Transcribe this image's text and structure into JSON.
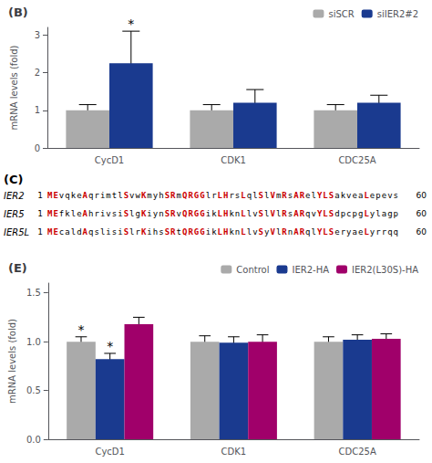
{
  "chart_data": [
    {
      "type": "bar",
      "title": "(B)",
      "categories": [
        "CycD1",
        "CDK1",
        "CDC25A"
      ],
      "series": [
        {
          "name": "siSCR",
          "color": "#aaaaaa",
          "values": [
            1.0,
            1.0,
            1.0
          ],
          "errors": [
            0.15,
            0.15,
            0.15
          ]
        },
        {
          "name": "siIER2#2",
          "color": "#1a3a8f",
          "values": [
            2.25,
            1.2,
            1.2
          ],
          "errors": [
            0.85,
            0.35,
            0.2
          ]
        }
      ],
      "ylabel": "mRNA levels (fold)",
      "ylim": [
        0,
        3.2
      ],
      "yticks": [
        0,
        1,
        2,
        3
      ],
      "legend": "upper right",
      "grid": false,
      "annotations": [
        {
          "text": "*",
          "series": "siIER2#2",
          "category": "CycD1"
        }
      ]
    },
    {
      "type": "text",
      "title": "(C)",
      "annotations": [
        {
          "label": "IER2",
          "start": 1,
          "end": 60,
          "text": "MEvqkeAqrimtlSvwKmyhSRmQRGGlrLHrsLqlSlVmRsARelYLSakveaLepevs"
        },
        {
          "label": "IER5",
          "start": 1,
          "end": 60,
          "text": "MEfkleAhrivsiSlgKiynSRvQRGGikLHknLlvSlVlRsARqvYLSdpcpgLylagp"
        },
        {
          "label": "IER5L",
          "start": 1,
          "end": 60,
          "text": "MEcaldAqslisiSlrKihsSRtQRGGikLHknLlvSyVlRnARqlYLSeryaeLyrrqq"
        }
      ]
    },
    {
      "type": "bar",
      "title": "(E)",
      "categories": [
        "CycD1",
        "CDK1",
        "CDC25A"
      ],
      "series": [
        {
          "name": "Control",
          "color": "#aaaaaa",
          "values": [
            1.0,
            1.0,
            1.0
          ],
          "errors": [
            0.05,
            0.06,
            0.05
          ]
        },
        {
          "name": "IER2-HA",
          "color": "#1a3a8f",
          "values": [
            0.82,
            0.99,
            1.02
          ],
          "errors": [
            0.06,
            0.06,
            0.05
          ]
        },
        {
          "name": "IER2(L30S)-HA",
          "color": "#a0006a",
          "values": [
            1.18,
            1.0,
            1.03
          ],
          "errors": [
            0.07,
            0.07,
            0.05
          ]
        }
      ],
      "ylabel": "mRNA levels (fold)",
      "ylim": [
        0,
        1.6
      ],
      "yticks": [
        {
          "value": 0,
          "label": "0.0"
        },
        0.5,
        {
          "value": 1,
          "label": "1.0"
        },
        1.5
      ],
      "legend": "upper right",
      "grid": false,
      "annotations": [
        {
          "text": "*",
          "series": "Control",
          "category": "CycD1"
        },
        {
          "text": "*",
          "series": "IER2-HA",
          "category": "CycD1"
        }
      ]
    }
  ]
}
